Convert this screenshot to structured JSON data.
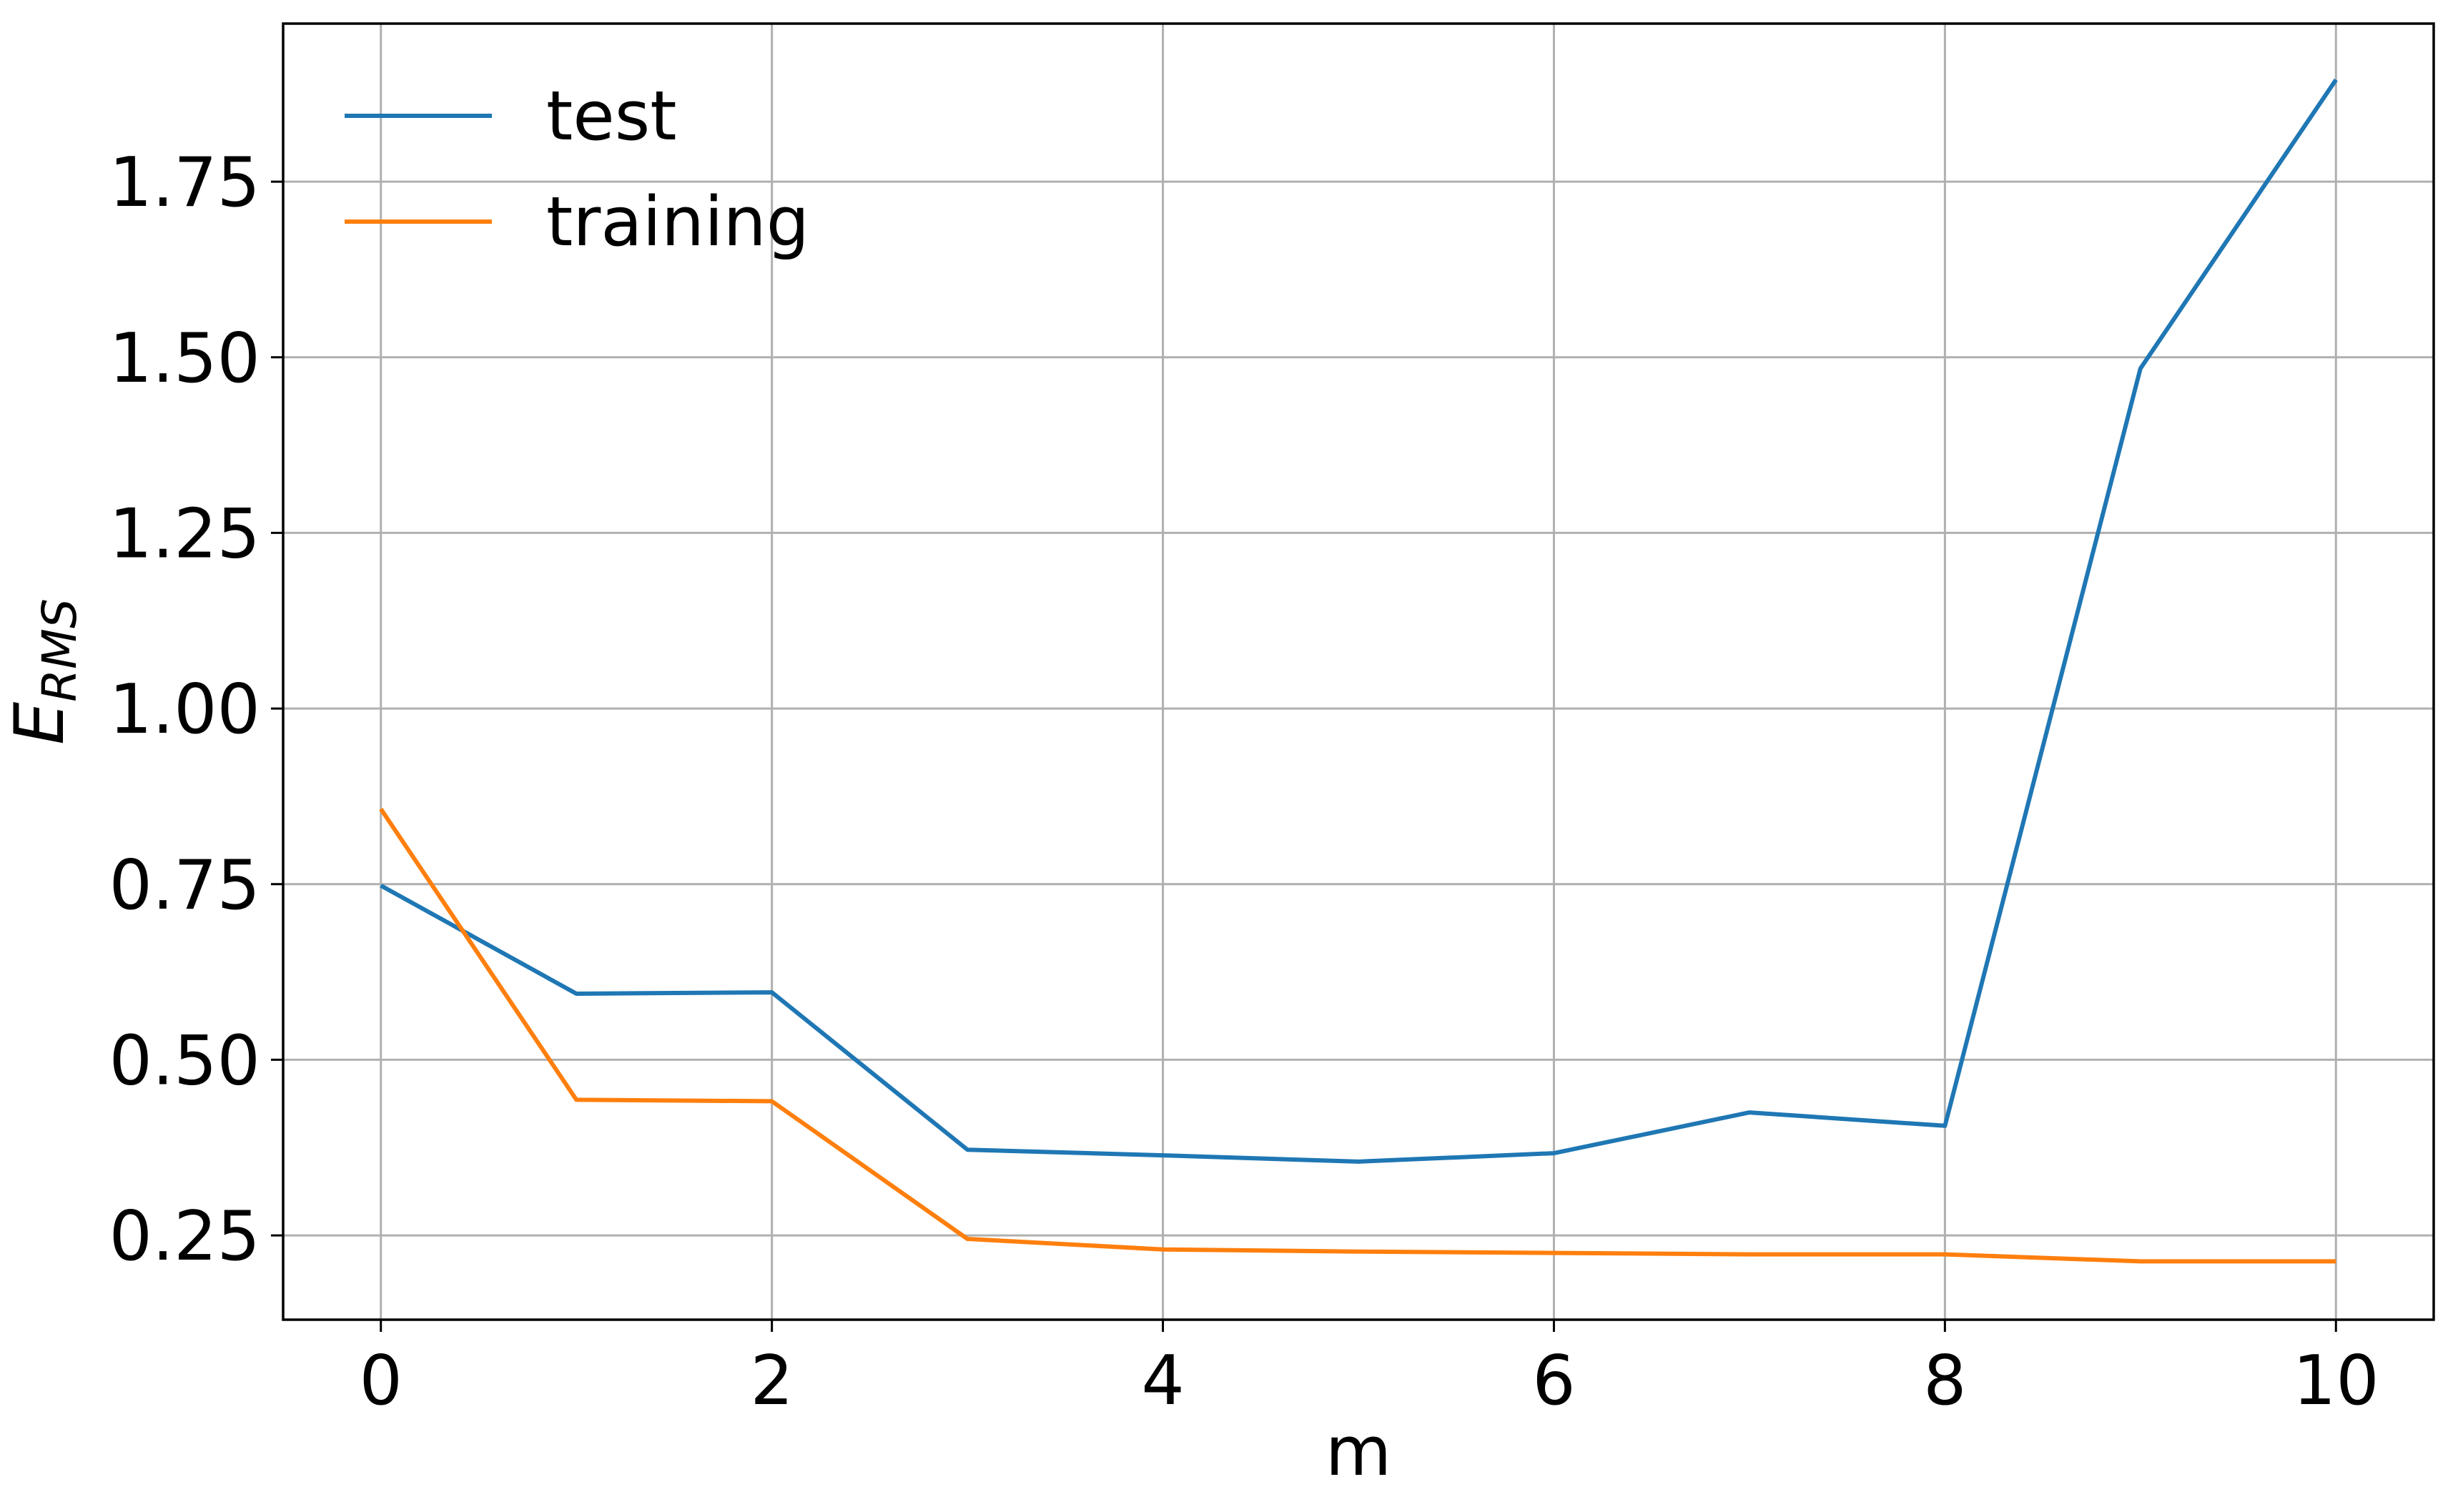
{
  "chart_data": {
    "type": "line",
    "title": "",
    "xlabel": "m",
    "ylabel_main": "E",
    "ylabel_sub": "RMS",
    "x": [
      0,
      1,
      2,
      3,
      4,
      5,
      6,
      7,
      8,
      9,
      10
    ],
    "xlim": [
      -0.5,
      10.5
    ],
    "ylim": [
      0.13,
      1.975
    ],
    "xticks": [
      0,
      2,
      4,
      6,
      8,
      10
    ],
    "xtick_labels": [
      "0",
      "2",
      "4",
      "6",
      "8",
      "10"
    ],
    "yticks": [
      0.25,
      0.5,
      0.75,
      1.0,
      1.25,
      1.5,
      1.75
    ],
    "ytick_labels": [
      "0.25",
      "0.50",
      "0.75",
      "1.00",
      "1.25",
      "1.50",
      "1.75"
    ],
    "grid": true,
    "legend_position": "top-left",
    "series": [
      {
        "name": "test",
        "color": "#1f77b4",
        "values": [
          0.748,
          0.594,
          0.596,
          0.372,
          0.364,
          0.355,
          0.367,
          0.425,
          0.406,
          1.484,
          1.895
        ]
      },
      {
        "name": "training",
        "color": "#ff7f0e",
        "values": [
          0.857,
          0.443,
          0.441,
          0.245,
          0.23,
          0.227,
          0.225,
          0.223,
          0.223,
          0.213,
          0.213
        ]
      }
    ]
  }
}
